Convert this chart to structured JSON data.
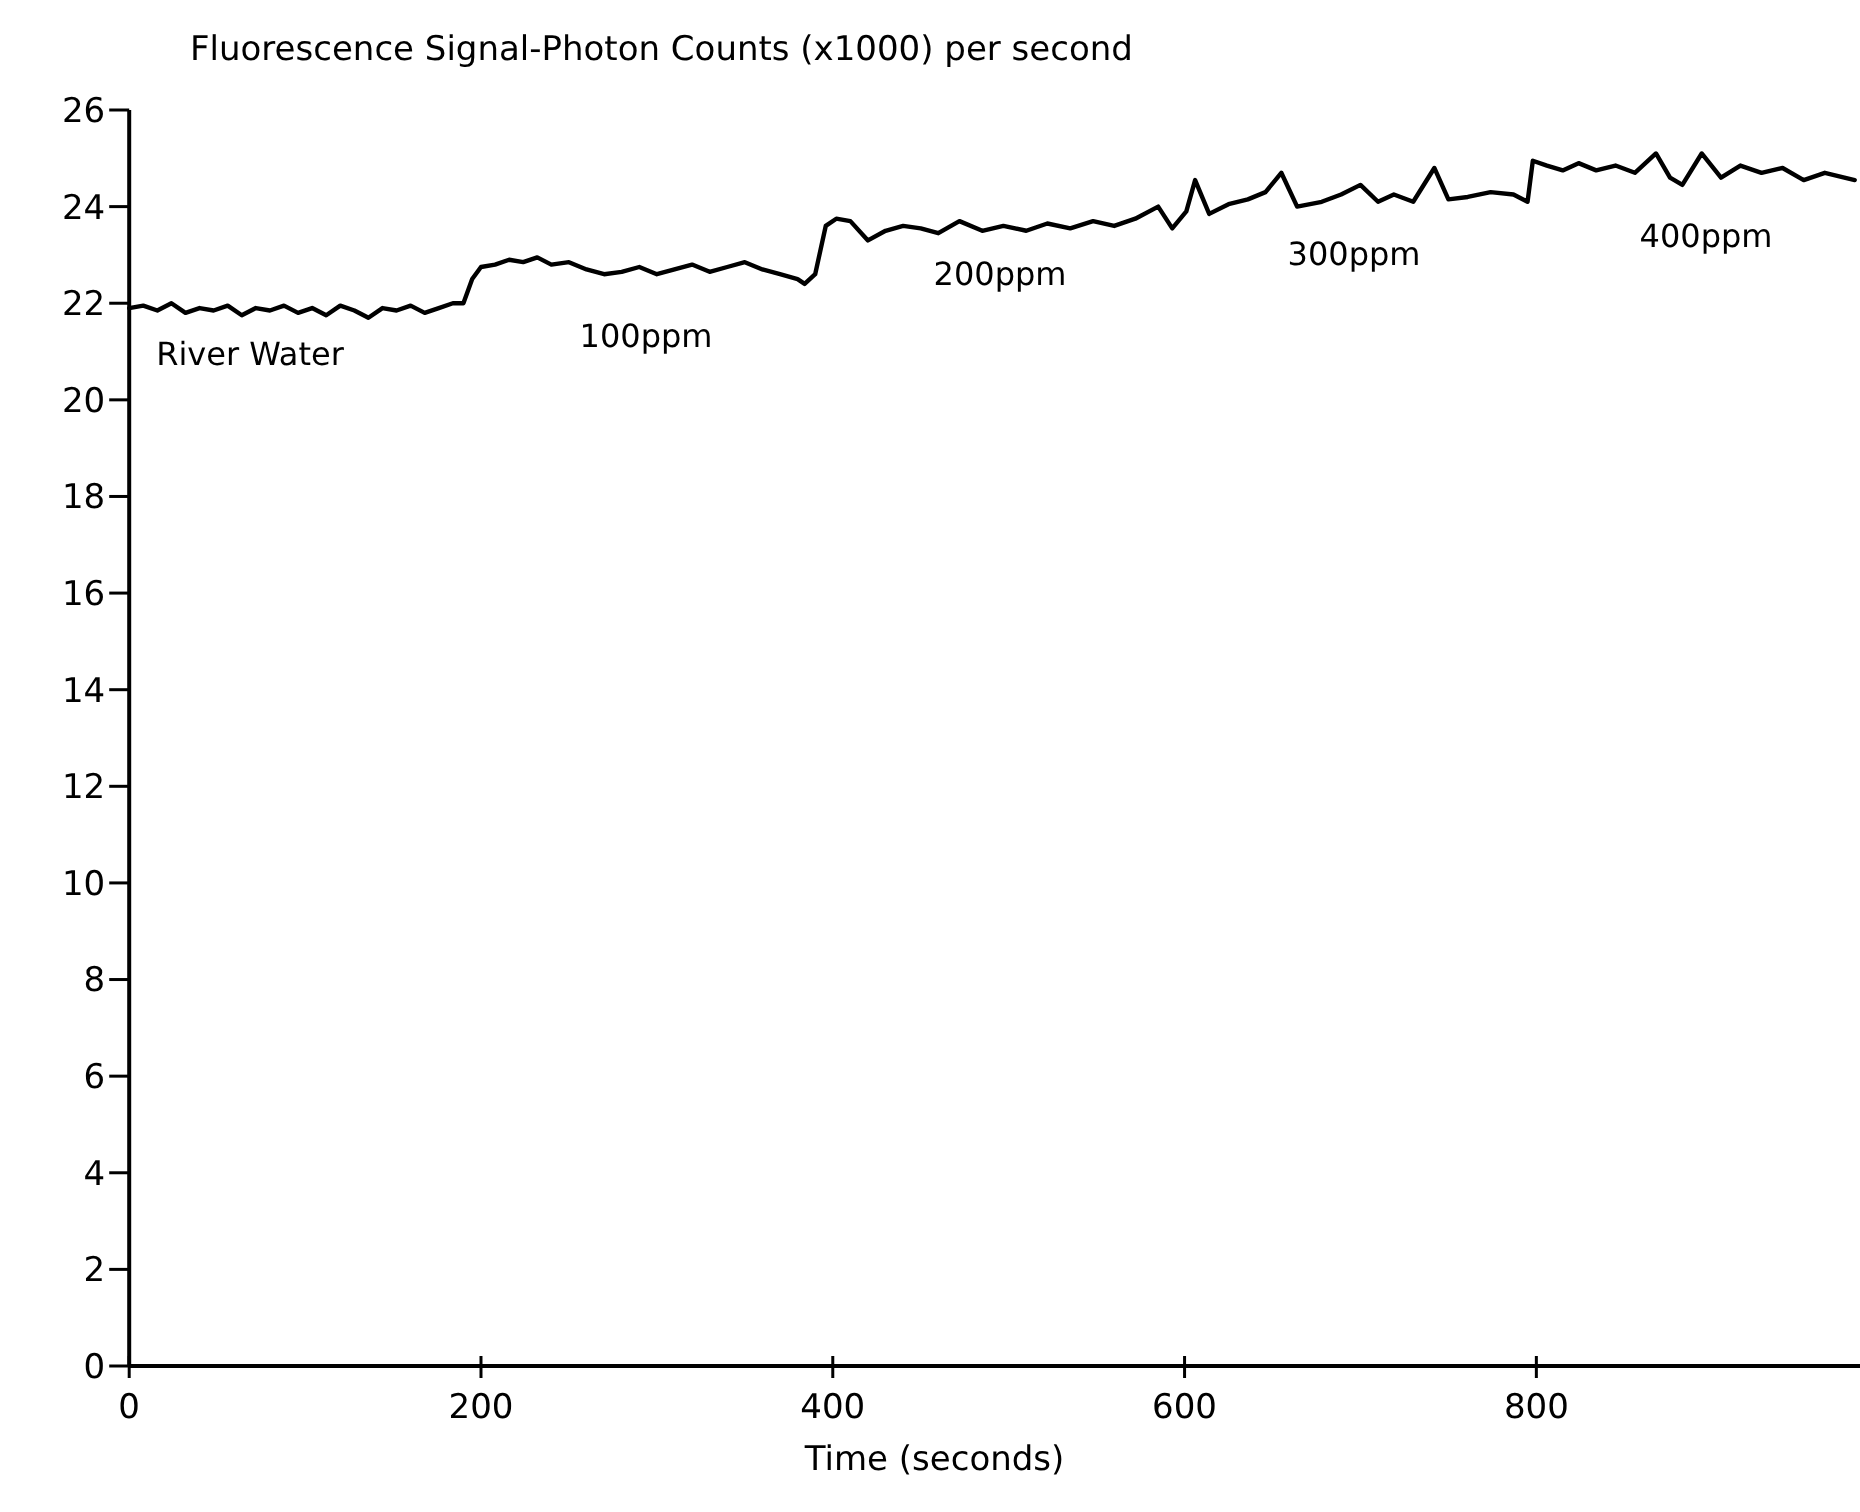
{
  "chart_data": {
    "type": "line",
    "title": "Fluorescence Signal-Photon Counts (x1000) per second",
    "xlabel": "Time (seconds)",
    "xlim": [
      0,
      984
    ],
    "xticks": [
      0,
      200,
      400,
      600,
      800
    ],
    "ylim": [
      0,
      26
    ],
    "yticks": [
      0,
      2,
      4,
      6,
      8,
      10,
      12,
      14,
      16,
      18,
      20,
      22,
      24,
      26
    ],
    "series": [
      {
        "color": "#000000",
        "x": [
          0,
          8,
          16,
          24,
          32,
          40,
          48,
          56,
          64,
          72,
          80,
          88,
          96,
          104,
          112,
          120,
          128,
          136,
          144,
          152,
          160,
          168,
          176,
          184,
          190,
          195,
          200,
          208,
          216,
          224,
          232,
          240,
          250,
          260,
          270,
          280,
          290,
          300,
          310,
          320,
          330,
          340,
          350,
          360,
          370,
          380,
          384,
          390,
          396,
          402,
          410,
          420,
          430,
          440,
          450,
          460,
          472,
          485,
          497,
          510,
          522,
          535,
          548,
          560,
          572,
          585,
          593,
          601,
          606,
          614,
          625,
          636,
          646,
          655,
          664,
          678,
          689,
          700,
          710,
          719,
          730,
          742,
          750,
          761,
          774,
          787,
          795,
          798,
          806,
          815,
          824,
          834,
          845,
          856,
          868,
          876,
          883,
          894,
          905,
          916,
          928,
          940,
          952,
          964,
          981
        ],
        "values": [
          21.9,
          21.95,
          21.85,
          22.0,
          21.8,
          21.9,
          21.85,
          21.95,
          21.75,
          21.9,
          21.85,
          21.95,
          21.8,
          21.9,
          21.75,
          21.95,
          21.85,
          21.7,
          21.9,
          21.85,
          21.95,
          21.8,
          21.9,
          22.0,
          22.0,
          22.5,
          22.75,
          22.8,
          22.9,
          22.85,
          22.95,
          22.8,
          22.85,
          22.7,
          22.6,
          22.65,
          22.75,
          22.6,
          22.7,
          22.8,
          22.65,
          22.75,
          22.85,
          22.7,
          22.6,
          22.5,
          22.4,
          22.6,
          23.6,
          23.75,
          23.7,
          23.3,
          23.5,
          23.6,
          23.55,
          23.45,
          23.7,
          23.5,
          23.6,
          23.5,
          23.65,
          23.55,
          23.7,
          23.6,
          23.75,
          24.0,
          23.55,
          23.9,
          24.55,
          23.85,
          24.05,
          24.15,
          24.3,
          24.7,
          24.0,
          24.1,
          24.25,
          24.45,
          24.1,
          24.25,
          24.1,
          24.8,
          24.15,
          24.2,
          24.3,
          24.25,
          24.1,
          24.95,
          24.85,
          24.75,
          24.9,
          24.75,
          24.85,
          24.7,
          25.1,
          24.6,
          24.45,
          25.1,
          24.6,
          24.85,
          24.7,
          24.8,
          24.55,
          24.7,
          24.55
        ]
      }
    ],
    "annotations": [
      "River Water",
      "100ppm",
      "200ppm",
      "300ppm",
      "400ppm"
    ]
  }
}
